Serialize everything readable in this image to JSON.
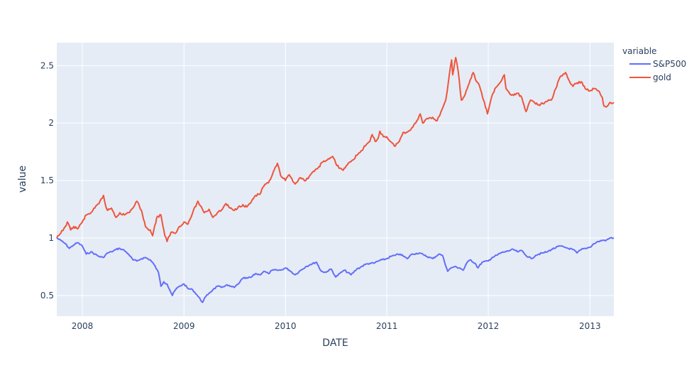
{
  "chart_data": {
    "type": "line",
    "xlabel": "DATE",
    "ylabel": "value",
    "xlim": [
      "2007-10-01",
      "2013-03-28"
    ],
    "ylim": [
      0.32,
      2.7
    ],
    "x_ticks": [
      {
        "date": "2008-01-01",
        "label": "2008"
      },
      {
        "date": "2009-01-01",
        "label": "2009"
      },
      {
        "date": "2010-01-01",
        "label": "2010"
      },
      {
        "date": "2011-01-01",
        "label": "2011"
      },
      {
        "date": "2012-01-01",
        "label": "2012"
      },
      {
        "date": "2013-01-01",
        "label": "2013"
      }
    ],
    "y_ticks": [
      {
        "value": 0.5,
        "label": "0.5"
      },
      {
        "value": 1,
        "label": "1"
      },
      {
        "value": 1.5,
        "label": "1.5"
      },
      {
        "value": 2,
        "label": "2"
      },
      {
        "value": 2.5,
        "label": "2.5"
      }
    ],
    "grid": true,
    "legend": {
      "title": "variable",
      "placement": "right"
    },
    "series": [
      {
        "name": "S&P500",
        "color": "#636efa",
        "points": [
          [
            "2007-10-01",
            1.0
          ],
          [
            "2007-10-15",
            0.98
          ],
          [
            "2007-11-01",
            0.95
          ],
          [
            "2007-11-15",
            0.91
          ],
          [
            "2007-12-01",
            0.94
          ],
          [
            "2007-12-15",
            0.96
          ],
          [
            "2008-01-01",
            0.93
          ],
          [
            "2008-01-15",
            0.86
          ],
          [
            "2008-02-01",
            0.88
          ],
          [
            "2008-02-15",
            0.86
          ],
          [
            "2008-03-01",
            0.84
          ],
          [
            "2008-03-15",
            0.83
          ],
          [
            "2008-04-01",
            0.87
          ],
          [
            "2008-04-15",
            0.88
          ],
          [
            "2008-05-01",
            0.9
          ],
          [
            "2008-05-15",
            0.91
          ],
          [
            "2008-06-01",
            0.89
          ],
          [
            "2008-06-15",
            0.86
          ],
          [
            "2008-07-01",
            0.81
          ],
          [
            "2008-07-15",
            0.8
          ],
          [
            "2008-08-01",
            0.82
          ],
          [
            "2008-08-15",
            0.83
          ],
          [
            "2008-09-01",
            0.81
          ],
          [
            "2008-09-15",
            0.77
          ],
          [
            "2008-10-01",
            0.7
          ],
          [
            "2008-10-10",
            0.58
          ],
          [
            "2008-10-20",
            0.62
          ],
          [
            "2008-11-01",
            0.6
          ],
          [
            "2008-11-20",
            0.5
          ],
          [
            "2008-12-01",
            0.55
          ],
          [
            "2008-12-15",
            0.58
          ],
          [
            "2009-01-01",
            0.6
          ],
          [
            "2009-01-15",
            0.56
          ],
          [
            "2009-02-01",
            0.55
          ],
          [
            "2009-02-15",
            0.51
          ],
          [
            "2009-03-09",
            0.44
          ],
          [
            "2009-03-20",
            0.49
          ],
          [
            "2009-04-01",
            0.52
          ],
          [
            "2009-04-15",
            0.55
          ],
          [
            "2009-05-01",
            0.58
          ],
          [
            "2009-05-15",
            0.57
          ],
          [
            "2009-06-01",
            0.59
          ],
          [
            "2009-06-15",
            0.58
          ],
          [
            "2009-07-01",
            0.57
          ],
          [
            "2009-07-15",
            0.6
          ],
          [
            "2009-08-01",
            0.65
          ],
          [
            "2009-08-15",
            0.65
          ],
          [
            "2009-09-01",
            0.66
          ],
          [
            "2009-09-15",
            0.69
          ],
          [
            "2009-10-01",
            0.68
          ],
          [
            "2009-10-15",
            0.71
          ],
          [
            "2009-11-01",
            0.69
          ],
          [
            "2009-11-15",
            0.72
          ],
          [
            "2009-12-01",
            0.72
          ],
          [
            "2009-12-15",
            0.72
          ],
          [
            "2010-01-01",
            0.74
          ],
          [
            "2010-01-15",
            0.72
          ],
          [
            "2010-02-05",
            0.68
          ],
          [
            "2010-02-20",
            0.71
          ],
          [
            "2010-03-15",
            0.75
          ],
          [
            "2010-04-01",
            0.77
          ],
          [
            "2010-04-23",
            0.79
          ],
          [
            "2010-05-07",
            0.72
          ],
          [
            "2010-05-20",
            0.7
          ],
          [
            "2010-06-01",
            0.71
          ],
          [
            "2010-06-15",
            0.73
          ],
          [
            "2010-07-01",
            0.66
          ],
          [
            "2010-07-15",
            0.69
          ],
          [
            "2010-08-01",
            0.72
          ],
          [
            "2010-08-25",
            0.68
          ],
          [
            "2010-09-15",
            0.73
          ],
          [
            "2010-10-01",
            0.75
          ],
          [
            "2010-10-15",
            0.77
          ],
          [
            "2010-11-01",
            0.78
          ],
          [
            "2010-11-15",
            0.78
          ],
          [
            "2010-12-01",
            0.8
          ],
          [
            "2010-12-15",
            0.81
          ],
          [
            "2011-01-01",
            0.82
          ],
          [
            "2011-01-15",
            0.84
          ],
          [
            "2011-02-01",
            0.85
          ],
          [
            "2011-02-18",
            0.86
          ],
          [
            "2011-03-15",
            0.82
          ],
          [
            "2011-04-01",
            0.86
          ],
          [
            "2011-04-29",
            0.87
          ],
          [
            "2011-05-15",
            0.85
          ],
          [
            "2011-06-15",
            0.82
          ],
          [
            "2011-07-07",
            0.86
          ],
          [
            "2011-07-20",
            0.85
          ],
          [
            "2011-08-08",
            0.71
          ],
          [
            "2011-08-20",
            0.74
          ],
          [
            "2011-09-01",
            0.75
          ],
          [
            "2011-09-20",
            0.74
          ],
          [
            "2011-10-03",
            0.72
          ],
          [
            "2011-10-15",
            0.78
          ],
          [
            "2011-10-28",
            0.81
          ],
          [
            "2011-11-15",
            0.78
          ],
          [
            "2011-11-25",
            0.74
          ],
          [
            "2011-12-10",
            0.79
          ],
          [
            "2012-01-01",
            0.8
          ],
          [
            "2012-01-15",
            0.83
          ],
          [
            "2012-02-01",
            0.85
          ],
          [
            "2012-02-15",
            0.87
          ],
          [
            "2012-03-01",
            0.88
          ],
          [
            "2012-04-01",
            0.9
          ],
          [
            "2012-04-15",
            0.88
          ],
          [
            "2012-05-01",
            0.89
          ],
          [
            "2012-05-15",
            0.85
          ],
          [
            "2012-06-04",
            0.82
          ],
          [
            "2012-06-20",
            0.85
          ],
          [
            "2012-07-01",
            0.86
          ],
          [
            "2012-07-15",
            0.87
          ],
          [
            "2012-08-01",
            0.88
          ],
          [
            "2012-08-15",
            0.9
          ],
          [
            "2012-09-14",
            0.93
          ],
          [
            "2012-10-01",
            0.92
          ],
          [
            "2012-10-15",
            0.91
          ],
          [
            "2012-11-01",
            0.9
          ],
          [
            "2012-11-15",
            0.87
          ],
          [
            "2012-12-01",
            0.9
          ],
          [
            "2012-12-15",
            0.91
          ],
          [
            "2013-01-01",
            0.92
          ],
          [
            "2013-01-15",
            0.95
          ],
          [
            "2013-02-01",
            0.97
          ],
          [
            "2013-02-15",
            0.98
          ],
          [
            "2013-03-01",
            0.98
          ],
          [
            "2013-03-15",
            1.0
          ],
          [
            "2013-03-28",
            1.0
          ]
        ]
      },
      {
        "name": "gold",
        "color": "#ef553b",
        "points": [
          [
            "2007-10-01",
            1.0
          ],
          [
            "2007-10-15",
            1.04
          ],
          [
            "2007-11-01",
            1.1
          ],
          [
            "2007-11-08",
            1.14
          ],
          [
            "2007-11-20",
            1.07
          ],
          [
            "2007-12-01",
            1.1
          ],
          [
            "2007-12-15",
            1.08
          ],
          [
            "2008-01-01",
            1.14
          ],
          [
            "2008-01-15",
            1.2
          ],
          [
            "2008-02-01",
            1.22
          ],
          [
            "2008-02-15",
            1.26
          ],
          [
            "2008-03-01",
            1.3
          ],
          [
            "2008-03-17",
            1.37
          ],
          [
            "2008-03-25",
            1.28
          ],
          [
            "2008-04-01",
            1.24
          ],
          [
            "2008-04-15",
            1.26
          ],
          [
            "2008-05-01",
            1.18
          ],
          [
            "2008-05-15",
            1.22
          ],
          [
            "2008-06-01",
            1.2
          ],
          [
            "2008-06-15",
            1.22
          ],
          [
            "2008-07-01",
            1.26
          ],
          [
            "2008-07-15",
            1.32
          ],
          [
            "2008-08-01",
            1.24
          ],
          [
            "2008-08-15",
            1.1
          ],
          [
            "2008-09-01",
            1.07
          ],
          [
            "2008-09-10",
            1.02
          ],
          [
            "2008-09-25",
            1.18
          ],
          [
            "2008-10-10",
            1.2
          ],
          [
            "2008-10-24",
            1.02
          ],
          [
            "2008-11-01",
            0.97
          ],
          [
            "2008-11-15",
            1.05
          ],
          [
            "2008-12-01",
            1.04
          ],
          [
            "2008-12-15",
            1.1
          ],
          [
            "2009-01-01",
            1.14
          ],
          [
            "2009-01-15",
            1.12
          ],
          [
            "2009-02-01",
            1.22
          ],
          [
            "2009-02-20",
            1.32
          ],
          [
            "2009-03-01",
            1.28
          ],
          [
            "2009-03-15",
            1.22
          ],
          [
            "2009-04-01",
            1.25
          ],
          [
            "2009-04-15",
            1.18
          ],
          [
            "2009-05-01",
            1.22
          ],
          [
            "2009-05-15",
            1.24
          ],
          [
            "2009-06-01",
            1.3
          ],
          [
            "2009-06-15",
            1.26
          ],
          [
            "2009-07-01",
            1.24
          ],
          [
            "2009-07-15",
            1.27
          ],
          [
            "2009-08-01",
            1.29
          ],
          [
            "2009-08-15",
            1.27
          ],
          [
            "2009-09-01",
            1.32
          ],
          [
            "2009-09-15",
            1.37
          ],
          [
            "2009-10-01",
            1.38
          ],
          [
            "2009-10-15",
            1.45
          ],
          [
            "2009-11-01",
            1.48
          ],
          [
            "2009-11-15",
            1.55
          ],
          [
            "2009-12-03",
            1.65
          ],
          [
            "2009-12-15",
            1.54
          ],
          [
            "2010-01-01",
            1.5
          ],
          [
            "2010-01-15",
            1.55
          ],
          [
            "2010-02-05",
            1.47
          ],
          [
            "2010-02-20",
            1.52
          ],
          [
            "2010-03-15",
            1.5
          ],
          [
            "2010-04-01",
            1.55
          ],
          [
            "2010-04-15",
            1.58
          ],
          [
            "2010-05-01",
            1.62
          ],
          [
            "2010-05-15",
            1.66
          ],
          [
            "2010-06-01",
            1.68
          ],
          [
            "2010-06-20",
            1.71
          ],
          [
            "2010-07-05",
            1.63
          ],
          [
            "2010-07-28",
            1.59
          ],
          [
            "2010-08-15",
            1.65
          ],
          [
            "2010-09-01",
            1.68
          ],
          [
            "2010-09-15",
            1.72
          ],
          [
            "2010-10-01",
            1.76
          ],
          [
            "2010-10-15",
            1.8
          ],
          [
            "2010-11-01",
            1.84
          ],
          [
            "2010-11-09",
            1.9
          ],
          [
            "2010-11-20",
            1.84
          ],
          [
            "2010-12-01",
            1.87
          ],
          [
            "2010-12-07",
            1.93
          ],
          [
            "2010-12-20",
            1.88
          ],
          [
            "2011-01-01",
            1.88
          ],
          [
            "2011-01-28",
            1.8
          ],
          [
            "2011-02-15",
            1.84
          ],
          [
            "2011-03-01",
            1.92
          ],
          [
            "2011-03-15",
            1.92
          ],
          [
            "2011-04-01",
            1.96
          ],
          [
            "2011-04-15",
            2.0
          ],
          [
            "2011-05-01",
            2.08
          ],
          [
            "2011-05-10",
            2.0
          ],
          [
            "2011-05-25",
            2.04
          ],
          [
            "2011-06-15",
            2.05
          ],
          [
            "2011-07-01",
            2.02
          ],
          [
            "2011-07-15",
            2.1
          ],
          [
            "2011-08-01",
            2.2
          ],
          [
            "2011-08-10",
            2.35
          ],
          [
            "2011-08-22",
            2.55
          ],
          [
            "2011-08-26",
            2.42
          ],
          [
            "2011-09-06",
            2.57
          ],
          [
            "2011-09-15",
            2.45
          ],
          [
            "2011-09-26",
            2.2
          ],
          [
            "2011-10-10",
            2.25
          ],
          [
            "2011-10-25",
            2.35
          ],
          [
            "2011-11-08",
            2.44
          ],
          [
            "2011-11-20",
            2.36
          ],
          [
            "2011-12-01",
            2.32
          ],
          [
            "2011-12-15",
            2.2
          ],
          [
            "2011-12-29",
            2.08
          ],
          [
            "2012-01-10",
            2.2
          ],
          [
            "2012-01-25",
            2.3
          ],
          [
            "2012-02-15",
            2.36
          ],
          [
            "2012-02-28",
            2.42
          ],
          [
            "2012-03-05",
            2.3
          ],
          [
            "2012-03-20",
            2.25
          ],
          [
            "2012-04-01",
            2.24
          ],
          [
            "2012-04-15",
            2.26
          ],
          [
            "2012-05-01",
            2.22
          ],
          [
            "2012-05-16",
            2.1
          ],
          [
            "2012-06-01",
            2.2
          ],
          [
            "2012-06-15",
            2.18
          ],
          [
            "2012-07-01",
            2.16
          ],
          [
            "2012-07-15",
            2.17
          ],
          [
            "2012-08-01",
            2.19
          ],
          [
            "2012-08-15",
            2.2
          ],
          [
            "2012-08-31",
            2.3
          ],
          [
            "2012-09-15",
            2.4
          ],
          [
            "2012-10-05",
            2.44
          ],
          [
            "2012-10-20",
            2.36
          ],
          [
            "2012-11-01",
            2.32
          ],
          [
            "2012-11-15",
            2.35
          ],
          [
            "2012-12-01",
            2.36
          ],
          [
            "2012-12-15",
            2.3
          ],
          [
            "2013-01-01",
            2.28
          ],
          [
            "2013-01-15",
            2.3
          ],
          [
            "2013-02-01",
            2.28
          ],
          [
            "2013-02-15",
            2.22
          ],
          [
            "2013-02-20",
            2.15
          ],
          [
            "2013-03-01",
            2.14
          ],
          [
            "2013-03-15",
            2.18
          ],
          [
            "2013-03-28",
            2.18
          ]
        ]
      }
    ]
  }
}
